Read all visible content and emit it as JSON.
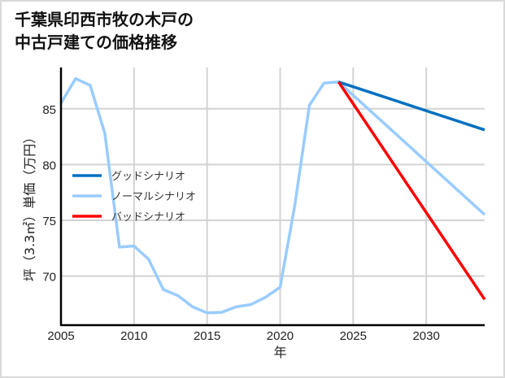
{
  "title": "千葉県印西市牧の木戸の\n中古戸建ての価格推移",
  "chart_data": {
    "type": "line",
    "title": "千葉県印西市牧の木戸の中古戸建ての価格推移",
    "xlabel": "年",
    "ylabel": "坪（3.3㎡）単価（万円）",
    "xlim": [
      2005,
      2034
    ],
    "ylim": [
      65.6,
      88.7
    ],
    "xticks": [
      2005,
      2010,
      2015,
      2020,
      2025,
      2030
    ],
    "yticks": [
      70,
      75,
      80,
      85
    ],
    "grid": true,
    "legend_position": "center-left",
    "series": [
      {
        "name": "グッドシナリオ",
        "color": "#0070c0",
        "x": [
          2024,
          2034
        ],
        "values": [
          87.4,
          83.1
        ]
      },
      {
        "name": "ノーマルシナリオ",
        "color": "#99ccff",
        "x": [
          2005,
          2006,
          2007,
          2008,
          2009,
          2010,
          2011,
          2012,
          2013,
          2014,
          2015,
          2016,
          2017,
          2018,
          2019,
          2020,
          2021,
          2022,
          2023,
          2024,
          2034
        ],
        "values": [
          85.5,
          87.7,
          87.1,
          82.8,
          72.6,
          72.7,
          71.5,
          68.8,
          68.25,
          67.25,
          66.7,
          66.75,
          67.25,
          67.45,
          68.1,
          69.0,
          76.3,
          85.3,
          87.3,
          87.4,
          75.5
        ]
      },
      {
        "name": "バッドシナリオ",
        "color": "#ff0000",
        "x": [
          2024,
          2034
        ],
        "values": [
          87.4,
          67.9
        ]
      }
    ]
  }
}
